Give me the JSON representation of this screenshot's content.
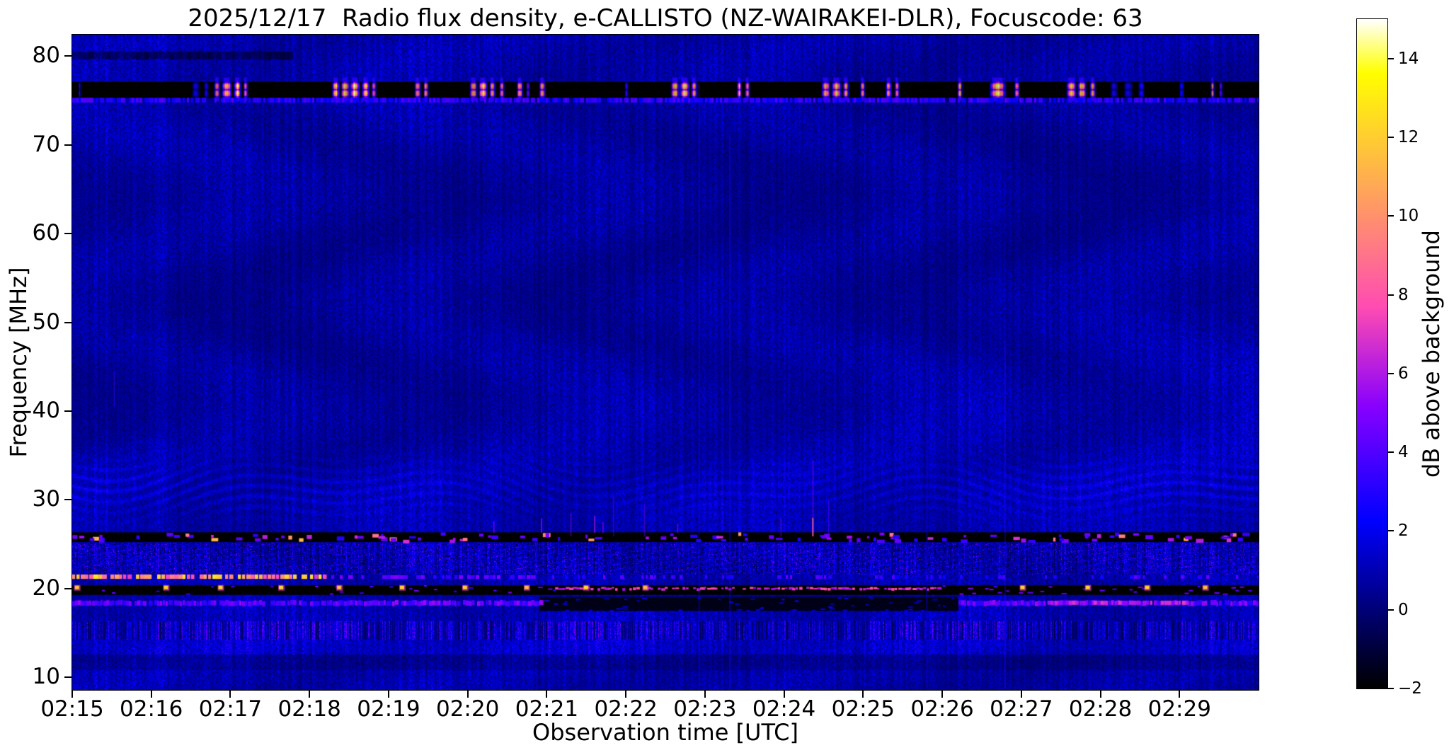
{
  "figure": {
    "title": "2025/12/17  Radio flux density, e-CALLISTO (NZ-WAIRAKEI-DLR), Focuscode: 63",
    "xlabel": "Observation time [UTC]",
    "ylabel": "Frequency [MHz]",
    "colorbar_label": "dB above background"
  },
  "chart_data": {
    "type": "heatmap",
    "title": "2025/12/17  Radio flux density, e-CALLISTO (NZ-WAIRAKEI-DLR), Focuscode: 63",
    "xlabel": "Observation time [UTC]",
    "ylabel": "Frequency [MHz]",
    "x_ticks": [
      "02:15",
      "02:16",
      "02:17",
      "02:18",
      "02:19",
      "02:20",
      "02:21",
      "02:22",
      "02:23",
      "02:24",
      "02:25",
      "02:26",
      "02:27",
      "02:28",
      "02:29"
    ],
    "x_range_minutes": 15,
    "y_ticks": [
      80,
      70,
      60,
      50,
      40,
      30,
      20,
      10
    ],
    "y_range": [
      8.6,
      82.4
    ],
    "grid": false,
    "colorbar": {
      "label": "dB above background",
      "ticks": [
        14,
        12,
        10,
        8,
        6,
        4,
        2,
        0,
        -2
      ],
      "range": [
        -2,
        15
      ],
      "colormap": "gnuplot2",
      "colormap_stops": [
        {
          "value": -2,
          "color": "#000000"
        },
        {
          "value": 2,
          "color": "#0000f0"
        },
        {
          "value": 6,
          "color": "#af1ae5"
        },
        {
          "value": 10,
          "color": "#ff926d"
        },
        {
          "value": 14,
          "color": "#ffff40"
        },
        {
          "value": 15,
          "color": "#ffffff"
        }
      ]
    },
    "background_db": 0.9,
    "features": {
      "dark_streak_80": {
        "f_hi": 80.6,
        "f_lo": 79.7,
        "t0": 0.0,
        "t1": 0.185
      },
      "rfi_band_75": {
        "f_hi": 77.1,
        "f_lo": 75.3,
        "base_db": -2,
        "bursts": [
          [
            0.006,
            1,
            4
          ],
          [
            0.104,
            5,
            4
          ],
          [
            0.113,
            3,
            4.5
          ],
          [
            0.122,
            4,
            12.5
          ],
          [
            0.13,
            7,
            15
          ],
          [
            0.139,
            5,
            14
          ],
          [
            0.146,
            3,
            11.5
          ],
          [
            0.222,
            5,
            13.5
          ],
          [
            0.23,
            6,
            15
          ],
          [
            0.238,
            7,
            15
          ],
          [
            0.247,
            5,
            14
          ],
          [
            0.254,
            3,
            12.5
          ],
          [
            0.291,
            4,
            13.5
          ],
          [
            0.298,
            3,
            13
          ],
          [
            0.338,
            5,
            13.5
          ],
          [
            0.346,
            6,
            15
          ],
          [
            0.354,
            4,
            13
          ],
          [
            0.362,
            3,
            11.5
          ],
          [
            0.377,
            4,
            13
          ],
          [
            0.384,
            2,
            6
          ],
          [
            0.396,
            4,
            13.5
          ],
          [
            0.467,
            2,
            6
          ],
          [
            0.508,
            6,
            14
          ],
          [
            0.516,
            7,
            15
          ],
          [
            0.524,
            4,
            13
          ],
          [
            0.562,
            3,
            12.5
          ],
          [
            0.569,
            3,
            12
          ],
          [
            0.635,
            6,
            14
          ],
          [
            0.644,
            7,
            15
          ],
          [
            0.652,
            4,
            12.5
          ],
          [
            0.666,
            3,
            12
          ],
          [
            0.688,
            4,
            12.5
          ],
          [
            0.695,
            3,
            11.5
          ],
          [
            0.748,
            3,
            13.5
          ],
          [
            0.78,
            12,
            15
          ],
          [
            0.796,
            3,
            12.5
          ],
          [
            0.842,
            7,
            14
          ],
          [
            0.851,
            6,
            15
          ],
          [
            0.86,
            4,
            13
          ],
          [
            0.878,
            5,
            4
          ],
          [
            0.89,
            6,
            4
          ],
          [
            0.901,
            4,
            4
          ],
          [
            0.935,
            3,
            4
          ],
          [
            0.961,
            2,
            12.5
          ],
          [
            0.968,
            2,
            6
          ]
        ]
      },
      "fringe_75": {
        "f_hi": 75.3,
        "f_lo": 74.75,
        "db": 3.2
      },
      "wavy_band": {
        "f_hi": 36.0,
        "f_lo": 27.0,
        "center_f": 31.4,
        "strength_db": 1.6
      },
      "band_26": {
        "f_hi": 26.35,
        "f_lo": 25.25,
        "base_db": -2,
        "blob_count": 120
      },
      "diag_region": {
        "f_hi": 25.25,
        "f_lo": 21.6
      },
      "hot_line_21": {
        "f_hi": 21.6,
        "f_lo": 21.1,
        "hot_until": 0.215,
        "mid_until": 0.39,
        "hot_db": 10,
        "mid_db": 4.2,
        "far_db": 3.5
      },
      "band_20": {
        "f_hi": 20.4,
        "f_lo": 19.3,
        "base_db": -2,
        "minute_dots": {
          "fracs": [
            0.004,
            0.079,
            0.125,
            0.176,
            0.225,
            0.278,
            0.331,
            0.383,
            0.433,
            0.483,
            0.801,
            0.856,
            0.906,
            0.955
          ],
          "db": 11.0,
          "f": 20.1
        },
        "magenta_line": {
          "t0": 0.407,
          "t1": 0.73,
          "f": 20.05,
          "db": 6.5
        },
        "left_dashes": {
          "t0": 0.0,
          "t1": 0.407,
          "db": 3.0,
          "density": 0.25
        },
        "right_dashes": {
          "t0": 0.73,
          "t1": 1.0,
          "db": 3.5,
          "density": 0.45
        }
      },
      "line_18": {
        "f_hi": 18.65,
        "f_lo": 18.1,
        "db": 4.3,
        "segments": [
          {
            "t0": 0.0,
            "t1": 0.394
          },
          {
            "t0": 0.747,
            "t1": 1.0
          }
        ],
        "magenta": {
          "t0": 0.822,
          "t1": 0.941,
          "db": 6.2
        },
        "black_gap": {
          "t0": 0.394,
          "t1": 0.747,
          "f_hi": 19.1,
          "f_lo": 17.5
        }
      },
      "strata": [
        {
          "f_hi": 18.1,
          "f_lo": 16.4,
          "mul": 1.04,
          "bars": false
        },
        {
          "f_hi": 16.4,
          "f_lo": 14.3,
          "mul": 1.0,
          "bars": true
        },
        {
          "f_hi": 14.3,
          "f_lo": 12.6,
          "mul": 1.16,
          "bars": false
        },
        {
          "f_hi": 12.6,
          "f_lo": 10.9,
          "mul": 0.84,
          "bars": false
        },
        {
          "f_hi": 10.9,
          "f_lo": 8.6,
          "mul": 1.0,
          "bars": false
        }
      ],
      "spikes_26": [
        {
          "t": 0.355,
          "f_hi": 27.6,
          "db": 5.0
        },
        {
          "t": 0.395,
          "f_hi": 27.9,
          "db": 5.5
        },
        {
          "t": 0.44,
          "f_hi": 28.2,
          "db": 6.0
        },
        {
          "t": 0.447,
          "f_hi": 27.5,
          "db": 5.0
        },
        {
          "t": 0.51,
          "f_hi": 27.3,
          "db": 4.5
        }
      ],
      "vertical_streaks": [
        {
          "t": 0.035,
          "f_hi": 44.5,
          "f_lo": 40.5,
          "db": 3.5
        },
        {
          "t": 0.42,
          "f_hi": 28.5,
          "f_lo": 25.9,
          "db": 5.5
        },
        {
          "t": 0.456,
          "f_hi": 30.5,
          "f_lo": 25.9,
          "db": 4.0
        },
        {
          "t": 0.482,
          "f_hi": 29.5,
          "f_lo": 25.9,
          "db": 4.5
        },
        {
          "t": 0.528,
          "f_hi": 77.0,
          "f_lo": 8.7,
          "db": 2.6
        },
        {
          "t": 0.554,
          "f_hi": 71.0,
          "f_lo": 8.7,
          "db": 2.8
        },
        {
          "t": 0.597,
          "f_hi": 28.0,
          "f_lo": 25.9,
          "db": 5.0
        },
        {
          "t": 0.624,
          "f_hi": 34.5,
          "f_lo": 25.9,
          "db": 5.5,
          "tip_db": 8.5
        },
        {
          "t": 0.637,
          "f_hi": 30.0,
          "f_lo": 25.9,
          "db": 4.0
        },
        {
          "t": 0.72,
          "f_hi": 46.0,
          "f_lo": 8.7,
          "db": 2.6
        },
        {
          "t": 0.786,
          "f_hi": 48.0,
          "f_lo": 8.7,
          "db": 2.8
        }
      ]
    }
  }
}
